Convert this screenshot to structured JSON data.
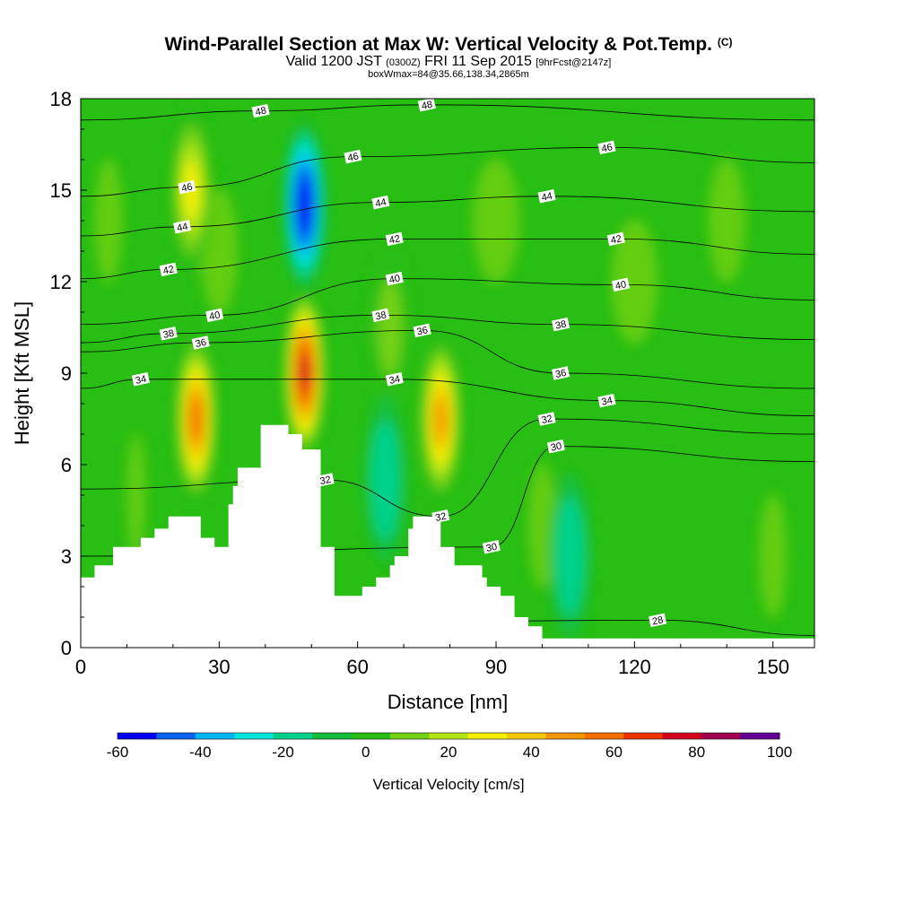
{
  "title": {
    "main": "Wind-Parallel Section at Max W: Vertical Velocity & Pot.Temp.",
    "copyright": "(C)"
  },
  "subtitle": {
    "valid": "Valid 1200 JST",
    "utc": "(0300Z)",
    "date": "FRI 11 Sep 2015",
    "forecast": "[9hrFcst@2147z]",
    "boxwmax": "boxWmax=84@35.66,138.34,2865m"
  },
  "chart_data": {
    "type": "heatmap",
    "xlabel": "Distance [nm]",
    "ylabel": "Height [Kft MSL]",
    "xlim": [
      0,
      159
    ],
    "ylim": [
      0,
      18
    ],
    "x_ticks": [
      0,
      30,
      60,
      90,
      120,
      150
    ],
    "y_ticks": [
      0,
      3,
      6,
      9,
      12,
      15,
      18
    ],
    "colorbar": {
      "label": "Vertical Velocity [cm/s]",
      "ticks": [
        -60,
        -40,
        -20,
        0,
        20,
        40,
        60,
        80,
        100
      ],
      "levels": [
        -60,
        -50,
        -40,
        -30,
        -20,
        -10,
        0,
        10,
        20,
        30,
        40,
        50,
        60,
        70,
        80,
        90,
        100
      ],
      "colors": [
        "#0000f5",
        "#0a64f0",
        "#00b4f5",
        "#00e6dc",
        "#00d28c",
        "#14be3c",
        "#28be14",
        "#73d214",
        "#b4e614",
        "#f5f000",
        "#f5c800",
        "#f59600",
        "#f56e00",
        "#f03200",
        "#d2001e",
        "#a00050",
        "#640096"
      ]
    },
    "terrain_profile": [
      [
        0,
        2.3
      ],
      [
        3,
        2.3
      ],
      [
        3,
        2.7
      ],
      [
        7,
        2.7
      ],
      [
        7,
        3.3
      ],
      [
        13,
        3.3
      ],
      [
        13,
        3.6
      ],
      [
        16,
        3.6
      ],
      [
        16,
        3.9
      ],
      [
        19,
        3.9
      ],
      [
        19,
        4.3
      ],
      [
        26,
        4.3
      ],
      [
        26,
        3.6
      ],
      [
        29,
        3.6
      ],
      [
        29,
        3.3
      ],
      [
        32,
        3.3
      ],
      [
        32,
        4.7
      ],
      [
        33,
        4.7
      ],
      [
        33,
        5.3
      ],
      [
        34,
        5.3
      ],
      [
        34,
        5.9
      ],
      [
        39,
        5.9
      ],
      [
        39,
        7.3
      ],
      [
        45,
        7.3
      ],
      [
        45,
        7.0
      ],
      [
        48,
        7.0
      ],
      [
        48,
        6.5
      ],
      [
        52,
        6.5
      ],
      [
        52,
        3.3
      ],
      [
        55,
        3.3
      ],
      [
        55,
        1.7
      ],
      [
        61,
        1.7
      ],
      [
        61,
        2.0
      ],
      [
        64,
        2.0
      ],
      [
        64,
        2.3
      ],
      [
        67,
        2.3
      ],
      [
        67,
        2.7
      ],
      [
        68,
        2.7
      ],
      [
        68,
        3.0
      ],
      [
        71,
        3.0
      ],
      [
        71,
        3.9
      ],
      [
        72,
        3.9
      ],
      [
        72,
        4.3
      ],
      [
        78,
        4.3
      ],
      [
        78,
        3.3
      ],
      [
        81,
        3.3
      ],
      [
        81,
        2.7
      ],
      [
        87,
        2.7
      ],
      [
        87,
        2.3
      ],
      [
        88,
        2.3
      ],
      [
        88,
        2.0
      ],
      [
        91,
        2.0
      ],
      [
        91,
        1.7
      ],
      [
        94,
        1.7
      ],
      [
        94,
        1.0
      ],
      [
        97,
        1.0
      ],
      [
        97,
        0.7
      ],
      [
        100,
        0.7
      ],
      [
        100,
        0.3
      ],
      [
        159,
        0.3
      ]
    ],
    "updrafts_cm_s": [
      {
        "x": 25,
        "y": 7.5,
        "w": 62
      },
      {
        "x": 48.5,
        "y": 9.0,
        "w": 84
      },
      {
        "x": 78,
        "y": 7.5,
        "w": 50
      },
      {
        "x": 24,
        "y": 15.0,
        "w": 30
      },
      {
        "x": 67,
        "y": 10.5,
        "w": 15
      }
    ],
    "downdrafts_cm_s": [
      {
        "x": 48.5,
        "y": 14.5,
        "w": -60
      },
      {
        "x": 66,
        "y": 5.5,
        "w": -20
      },
      {
        "x": 106,
        "y": 3.0,
        "w": -20
      }
    ],
    "theta_contours": [
      {
        "label": "28",
        "x": 125,
        "y": 0.9
      },
      {
        "label": "30",
        "x": 103,
        "y": 6.6
      },
      {
        "label": "30",
        "x": 89,
        "y": 3.3
      },
      {
        "label": "32",
        "x": 101,
        "y": 7.5
      },
      {
        "label": "32",
        "x": 53,
        "y": 5.5
      },
      {
        "label": "32",
        "x": 78,
        "y": 4.3
      },
      {
        "label": "34",
        "x": 13,
        "y": 8.8
      },
      {
        "label": "34",
        "x": 68,
        "y": 8.8
      },
      {
        "label": "34",
        "x": 114,
        "y": 8.1
      },
      {
        "label": "36",
        "x": 26,
        "y": 10.0
      },
      {
        "label": "36",
        "x": 74,
        "y": 10.4
      },
      {
        "label": "36",
        "x": 104,
        "y": 9.0
      },
      {
        "label": "38",
        "x": 19,
        "y": 10.3
      },
      {
        "label": "38",
        "x": 65,
        "y": 10.9
      },
      {
        "label": "38",
        "x": 104,
        "y": 10.6
      },
      {
        "label": "40",
        "x": 29,
        "y": 10.9
      },
      {
        "label": "40",
        "x": 68,
        "y": 12.1
      },
      {
        "label": "40",
        "x": 117,
        "y": 11.9
      },
      {
        "label": "42",
        "x": 19,
        "y": 12.4
      },
      {
        "label": "42",
        "x": 68,
        "y": 13.4
      },
      {
        "label": "42",
        "x": 116,
        "y": 13.4
      },
      {
        "label": "44",
        "x": 22,
        "y": 13.8
      },
      {
        "label": "44",
        "x": 65,
        "y": 14.6
      },
      {
        "label": "44",
        "x": 101,
        "y": 14.8
      },
      {
        "label": "46",
        "x": 23,
        "y": 15.1
      },
      {
        "label": "46",
        "x": 59,
        "y": 16.1
      },
      {
        "label": "46",
        "x": 114,
        "y": 16.4
      },
      {
        "label": "48",
        "x": 39,
        "y": 17.6
      },
      {
        "label": "48",
        "x": 75,
        "y": 17.8
      }
    ]
  }
}
